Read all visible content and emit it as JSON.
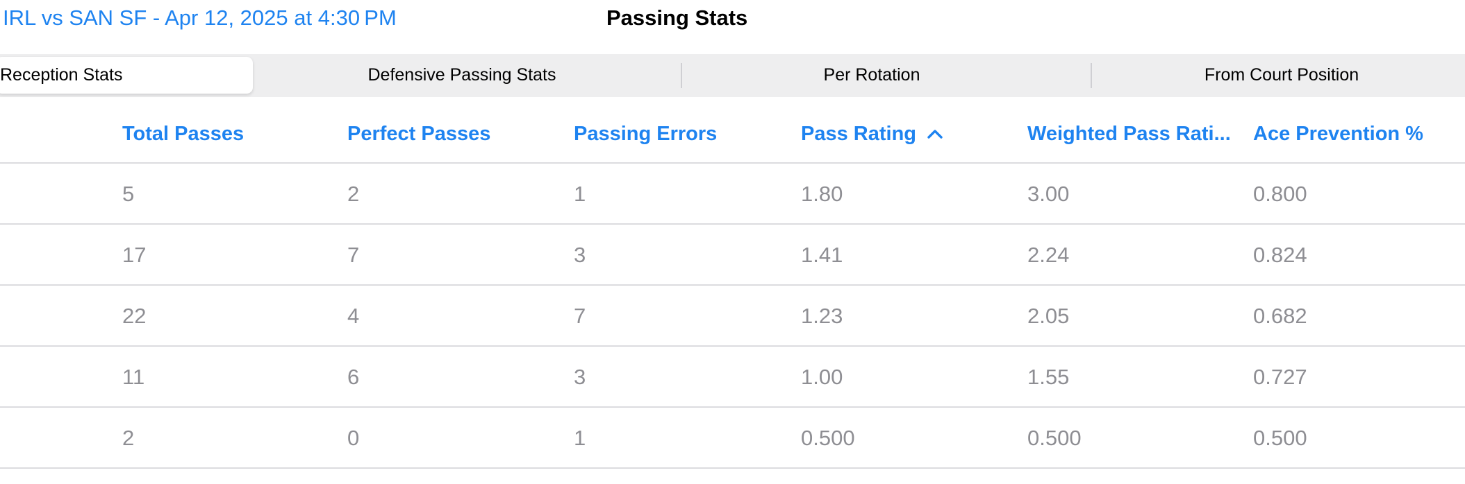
{
  "header": {
    "back_label": "IRL vs SAN SF - Apr 12, 2025 at 4:30 PM",
    "title": "Passing Stats"
  },
  "tabs": [
    {
      "label": "Reception Stats",
      "selected": true
    },
    {
      "label": "Defensive Passing Stats",
      "selected": false
    },
    {
      "label": "Per Rotation",
      "selected": false
    },
    {
      "label": "From Court Position",
      "selected": false
    }
  ],
  "table": {
    "columns": [
      {
        "label": "Total Passes"
      },
      {
        "label": "Perfect Passes"
      },
      {
        "label": "Passing Errors"
      },
      {
        "label": "Pass Rating",
        "sorted": "ascending",
        "sort_icon": "chevron-up-icon"
      },
      {
        "label": "Weighted Pass Rati..."
      },
      {
        "label": "Ace Prevention %"
      }
    ],
    "rows": [
      [
        "5",
        "2",
        "1",
        "1.80",
        "3.00",
        "0.800"
      ],
      [
        "17",
        "7",
        "3",
        "1.41",
        "2.24",
        "0.824"
      ],
      [
        "22",
        "4",
        "7",
        "1.23",
        "2.05",
        "0.682"
      ],
      [
        "11",
        "6",
        "3",
        "1.00",
        "1.55",
        "0.727"
      ],
      [
        "2",
        "0",
        "1",
        "0.500",
        "0.500",
        "0.500"
      ]
    ]
  },
  "colors": {
    "accent": "#1e83f0",
    "cell_text": "#8e8e93",
    "segment_bg": "#eeeeef",
    "divider": "#dcdcdf"
  }
}
